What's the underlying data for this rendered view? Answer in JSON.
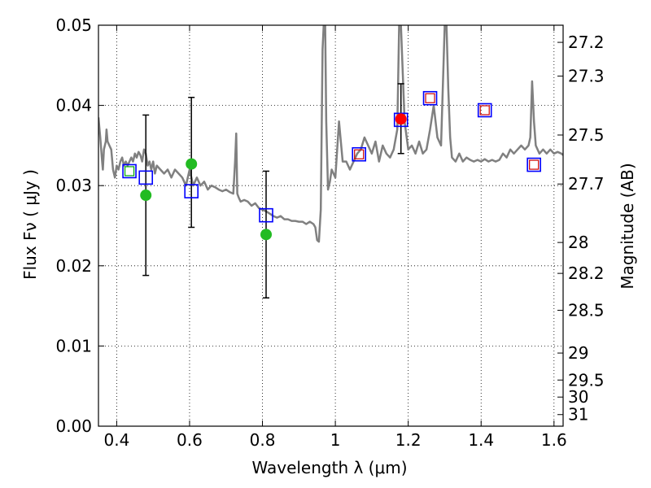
{
  "chart_data": {
    "type": "scatter",
    "xlabel": "Wavelength  λ (μm)",
    "ylabel": "Flux  Fν ( μJy )",
    "y2label": "Magnitude (AB)",
    "xlim": [
      0.35,
      1.625
    ],
    "ylim": [
      0.0,
      0.05
    ],
    "grid": true,
    "x_ticks": [
      {
        "value": 0.4,
        "label": "0.4"
      },
      {
        "value": 0.6,
        "label": "0.6"
      },
      {
        "value": 0.8,
        "label": "0.8"
      },
      {
        "value": 1.0,
        "label": "1"
      },
      {
        "value": 1.2,
        "label": "1.2"
      },
      {
        "value": 1.4,
        "label": "1.4"
      },
      {
        "value": 1.6,
        "label": "1.6"
      }
    ],
    "y_ticks": [
      {
        "value": 0.0,
        "label": "0.00"
      },
      {
        "value": 0.01,
        "label": "0.01"
      },
      {
        "value": 0.02,
        "label": "0.02"
      },
      {
        "value": 0.03,
        "label": "0.03"
      },
      {
        "value": 0.04,
        "label": "0.04"
      },
      {
        "value": 0.05,
        "label": "0.05"
      }
    ],
    "y2_ticks": [
      {
        "mag": 27.2,
        "label": "27.2"
      },
      {
        "mag": 27.3,
        "label": "27.3"
      },
      {
        "mag": 27.5,
        "label": "27.5"
      },
      {
        "mag": 27.7,
        "label": "27.7"
      },
      {
        "mag": 28.0,
        "label": "28"
      },
      {
        "mag": 28.2,
        "label": "28.2"
      },
      {
        "mag": 28.5,
        "label": "28.5"
      },
      {
        "mag": 29.0,
        "label": "29"
      },
      {
        "mag": 29.5,
        "label": "29.5"
      },
      {
        "mag": 30.0,
        "label": "30"
      },
      {
        "mag": 31.0,
        "label": "31"
      }
    ],
    "series": [
      {
        "name": "model_spectrum",
        "kind": "line",
        "color": "#808080",
        "x": [
          0.35,
          0.355,
          0.36,
          0.362,
          0.365,
          0.37,
          0.372,
          0.375,
          0.38,
          0.385,
          0.39,
          0.395,
          0.4,
          0.405,
          0.41,
          0.415,
          0.42,
          0.425,
          0.43,
          0.435,
          0.44,
          0.445,
          0.45,
          0.455,
          0.46,
          0.465,
          0.47,
          0.475,
          0.48,
          0.485,
          0.49,
          0.495,
          0.5,
          0.505,
          0.51,
          0.52,
          0.53,
          0.54,
          0.55,
          0.56,
          0.57,
          0.58,
          0.59,
          0.6,
          0.61,
          0.62,
          0.63,
          0.64,
          0.65,
          0.66,
          0.67,
          0.68,
          0.69,
          0.7,
          0.71,
          0.72,
          0.725,
          0.728,
          0.731,
          0.735,
          0.74,
          0.75,
          0.76,
          0.77,
          0.78,
          0.79,
          0.8,
          0.81,
          0.82,
          0.83,
          0.84,
          0.85,
          0.86,
          0.87,
          0.88,
          0.89,
          0.9,
          0.91,
          0.92,
          0.93,
          0.94,
          0.945,
          0.95,
          0.955,
          0.96,
          0.965,
          0.968,
          0.972,
          0.975,
          0.98,
          0.985,
          0.99,
          1.0,
          1.01,
          1.02,
          1.03,
          1.04,
          1.05,
          1.06,
          1.07,
          1.08,
          1.09,
          1.1,
          1.11,
          1.12,
          1.13,
          1.14,
          1.15,
          1.16,
          1.17,
          1.175,
          1.18,
          1.19,
          1.2,
          1.21,
          1.22,
          1.23,
          1.24,
          1.25,
          1.26,
          1.27,
          1.28,
          1.29,
          1.3,
          1.305,
          1.31,
          1.315,
          1.32,
          1.33,
          1.34,
          1.35,
          1.36,
          1.37,
          1.38,
          1.39,
          1.4,
          1.41,
          1.42,
          1.43,
          1.44,
          1.45,
          1.46,
          1.47,
          1.48,
          1.49,
          1.5,
          1.51,
          1.52,
          1.53,
          1.535,
          1.54,
          1.545,
          1.55,
          1.56,
          1.57,
          1.58,
          1.59,
          1.6,
          1.61,
          1.62,
          1.625
        ],
        "y": [
          0.0385,
          0.036,
          0.033,
          0.032,
          0.0345,
          0.0355,
          0.037,
          0.0355,
          0.035,
          0.0345,
          0.032,
          0.031,
          0.0325,
          0.032,
          0.033,
          0.0335,
          0.0325,
          0.033,
          0.0325,
          0.033,
          0.0335,
          0.033,
          0.034,
          0.0335,
          0.0342,
          0.0338,
          0.033,
          0.0345,
          0.034,
          0.0325,
          0.033,
          0.032,
          0.033,
          0.0315,
          0.0325,
          0.032,
          0.0315,
          0.032,
          0.031,
          0.032,
          0.0315,
          0.031,
          0.03,
          0.032,
          0.03,
          0.031,
          0.03,
          0.0305,
          0.0295,
          0.03,
          0.0298,
          0.0295,
          0.0293,
          0.0295,
          0.0292,
          0.029,
          0.033,
          0.0365,
          0.029,
          0.0285,
          0.028,
          0.0282,
          0.028,
          0.0275,
          0.0278,
          0.0272,
          0.027,
          0.0268,
          0.0265,
          0.0262,
          0.026,
          0.0262,
          0.0258,
          0.0258,
          0.0256,
          0.0256,
          0.0255,
          0.0255,
          0.0252,
          0.0255,
          0.0252,
          0.0248,
          0.0232,
          0.023,
          0.027,
          0.047,
          0.05,
          0.05,
          0.038,
          0.0295,
          0.0305,
          0.032,
          0.031,
          0.038,
          0.033,
          0.033,
          0.032,
          0.033,
          0.034,
          0.0345,
          0.036,
          0.035,
          0.034,
          0.0355,
          0.033,
          0.035,
          0.034,
          0.0335,
          0.0345,
          0.037,
          0.05,
          0.05,
          0.038,
          0.0345,
          0.035,
          0.034,
          0.0355,
          0.034,
          0.0345,
          0.037,
          0.04,
          0.036,
          0.035,
          0.05,
          0.05,
          0.042,
          0.036,
          0.0335,
          0.033,
          0.034,
          0.033,
          0.0335,
          0.0332,
          0.033,
          0.0332,
          0.033,
          0.0333,
          0.033,
          0.0332,
          0.033,
          0.0332,
          0.034,
          0.0335,
          0.0345,
          0.034,
          0.0345,
          0.035,
          0.0345,
          0.035,
          0.036,
          0.043,
          0.038,
          0.035,
          0.034,
          0.0345,
          0.034,
          0.0345,
          0.034,
          0.0342,
          0.034,
          0.0338
        ]
      },
      {
        "name": "model_bandpass",
        "kind": "open_square",
        "color": "#0000ff",
        "x": [
          0.435,
          0.48,
          0.605,
          0.81,
          1.065,
          1.18,
          1.26,
          1.41,
          1.545
        ],
        "y": [
          0.0318,
          0.031,
          0.0293,
          0.0263,
          0.0339,
          0.0382,
          0.0409,
          0.0394,
          0.0326
        ]
      },
      {
        "name": "hst_inner",
        "kind": "small_square",
        "color": "#cc0000",
        "x": [
          1.065,
          1.26,
          1.41,
          1.545
        ],
        "y": [
          0.0339,
          0.0409,
          0.0394,
          0.0326
        ]
      },
      {
        "name": "blue_inner",
        "kind": "small_square",
        "color": "#00aa00",
        "x": [
          0.435
        ],
        "y": [
          0.0318
        ]
      },
      {
        "name": "observed_optical",
        "kind": "filled_circle",
        "color": "#22bb22",
        "x": [
          0.48,
          0.605,
          0.81
        ],
        "y": [
          0.0288,
          0.0327,
          0.0239
        ]
      },
      {
        "name": "observed_nir",
        "kind": "filled_circle",
        "color": "#ff0000",
        "x": [
          1.18
        ],
        "y": [
          0.0383
        ]
      }
    ],
    "errorbars": [
      {
        "x": 0.48,
        "low": 0.0188,
        "high": 0.0388
      },
      {
        "x": 0.605,
        "low": 0.0248,
        "high": 0.041
      },
      {
        "x": 0.81,
        "low": 0.016,
        "high": 0.0318
      },
      {
        "x": 1.18,
        "low": 0.034,
        "high": 0.0427
      }
    ],
    "errorbar_color": "#000000"
  }
}
